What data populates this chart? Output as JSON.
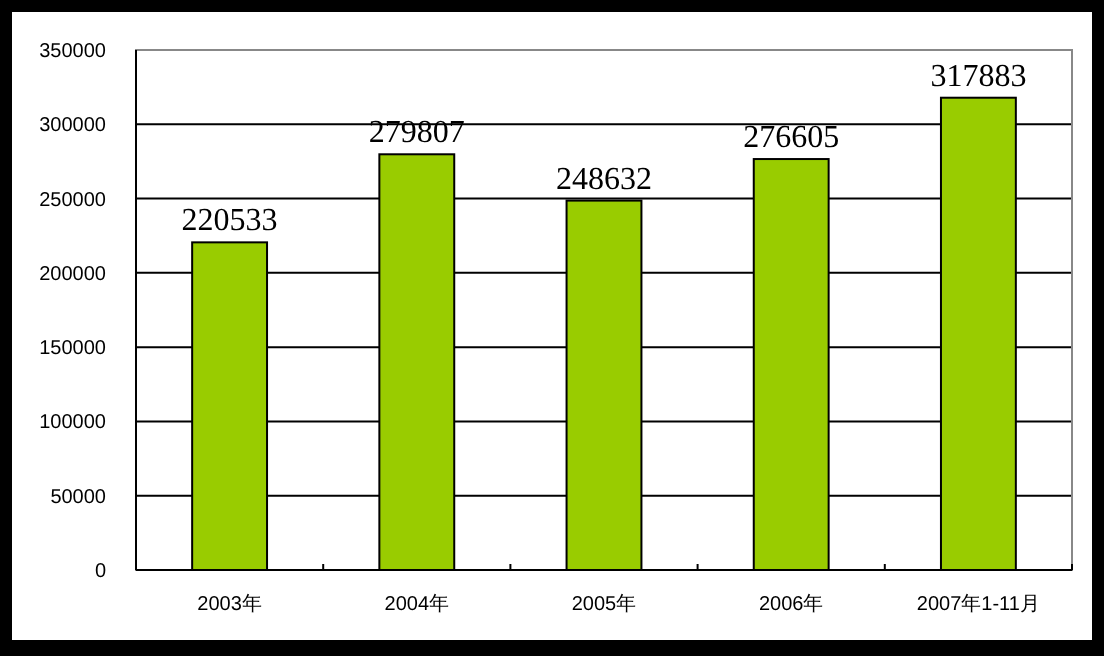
{
  "chart_data": {
    "type": "bar",
    "categories": [
      "2003年",
      "2004年",
      "2005年",
      "2006年",
      "2007年1-11月"
    ],
    "values": [
      220533,
      279807,
      248632,
      276605,
      317883
    ],
    "color": "#99cc00",
    "ylim": [
      0,
      350000
    ],
    "yticks": [
      0,
      50000,
      100000,
      150000,
      200000,
      250000,
      300000,
      350000
    ],
    "grid": "y",
    "data_labels": true
  }
}
